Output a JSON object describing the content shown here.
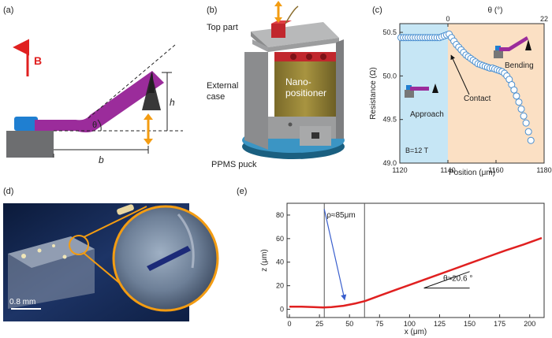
{
  "panel_a": {
    "label": "(a)",
    "field_label": "B",
    "angle_label": "θ",
    "height_label": "h",
    "base_label": "b"
  },
  "panel_b": {
    "label": "(b)",
    "top_part": "Top part",
    "external_case_line1": "External",
    "external_case_line2": "case",
    "nano_line1": "Nano-",
    "nano_line2": "positioner",
    "puck": "PPMS puck"
  },
  "panel_c": {
    "label": "(c)",
    "approach_label": "Approach",
    "contact_label": "Contact",
    "bending_label": "Bending",
    "field_note": "B=12 T",
    "colors": {
      "approach_bg": "#c6e6f5",
      "bending_bg": "#fbe0c4",
      "marker": "#4a8fd0"
    }
  },
  "panel_d": {
    "label": "(d)",
    "scale_bar": "0.8 mm"
  },
  "panel_e": {
    "label": "(e)",
    "rho_label": "ρ≈85μm",
    "theta_label": "θ≈20.6 °",
    "colors": {
      "curve": "#e02020",
      "arrow": "#3a5fcd"
    }
  },
  "chart_data": [
    {
      "type": "scatter",
      "title": "",
      "xlabel": "Position (μm)",
      "ylabel": "Resistance (Ω)",
      "top_xlabel": "θ (°)",
      "xlim": [
        1120,
        1180
      ],
      "ylim": [
        49.0,
        50.6
      ],
      "x_ticks": [
        1120,
        1140,
        1160,
        1180
      ],
      "y_ticks": [
        49.0,
        49.5,
        50.0,
        50.5
      ],
      "top_ticks": [
        {
          "value": 0,
          "at_x": 1140
        },
        {
          "value": 22,
          "at_x": 1180
        }
      ],
      "series": [
        {
          "name": "Resistance",
          "x": [
            1120.5,
            1121.5,
            1122.5,
            1123.5,
            1124.5,
            1125.5,
            1126.5,
            1127.5,
            1128.5,
            1129.5,
            1130.5,
            1131.5,
            1132.5,
            1133.5,
            1134.5,
            1135.5,
            1136.5,
            1137.5,
            1138.5,
            1139.5,
            1140.5,
            1141.5,
            1142.5,
            1143.5,
            1144.5,
            1145.5,
            1146.5,
            1147.5,
            1148.5,
            1149.5,
            1150.5,
            1151.5,
            1152.5,
            1153.5,
            1154.5,
            1155.5,
            1156.5,
            1157.5,
            1158.5,
            1159.5,
            1160.5,
            1161.5,
            1162.5,
            1163.5,
            1164.5,
            1165.5,
            1166.5,
            1167.5,
            1168.5,
            1169.5,
            1170.5,
            1171.5,
            1172.5,
            1173.5,
            1174.5
          ],
          "y": [
            50.44,
            50.44,
            50.44,
            50.44,
            50.44,
            50.44,
            50.44,
            50.44,
            50.44,
            50.44,
            50.44,
            50.44,
            50.44,
            50.44,
            50.44,
            50.44,
            50.44,
            50.45,
            50.46,
            50.47,
            50.48,
            50.44,
            50.4,
            50.36,
            50.33,
            50.3,
            50.27,
            50.24,
            50.22,
            50.2,
            50.18,
            50.16,
            50.14,
            50.13,
            50.12,
            50.11,
            50.1,
            50.09,
            50.09,
            50.08,
            50.07,
            50.06,
            50.05,
            50.03,
            50.0,
            49.96,
            49.9,
            49.84,
            49.77,
            49.7,
            49.62,
            49.54,
            49.46,
            49.36,
            49.26
          ]
        }
      ],
      "regions": [
        {
          "name": "Approach",
          "x_from": 1120,
          "x_to": 1140
        },
        {
          "name": "Bending",
          "x_from": 1140,
          "x_to": 1180
        }
      ]
    },
    {
      "type": "line",
      "title": "",
      "xlabel": "x (μm)",
      "ylabel": "z (μm)",
      "xlim": [
        -2,
        212
      ],
      "ylim": [
        -7,
        90
      ],
      "x_ticks": [
        0,
        25,
        50,
        75,
        100,
        125,
        150,
        175,
        200
      ],
      "y_ticks": [
        0,
        20,
        40,
        60,
        80
      ],
      "series": [
        {
          "name": "profile",
          "x": [
            0,
            10,
            20,
            28,
            35,
            45,
            55,
            63,
            75,
            90,
            105,
            120,
            135,
            150,
            165,
            180,
            195,
            210
          ],
          "y": [
            2.2,
            2.2,
            1.8,
            1.5,
            1.8,
            3.0,
            5.0,
            7.0,
            11.5,
            17.0,
            22.5,
            28.0,
            33.5,
            39.0,
            44.5,
            50.0,
            55.0,
            60.5
          ]
        }
      ],
      "vlines": [
        29,
        62.5
      ]
    }
  ]
}
